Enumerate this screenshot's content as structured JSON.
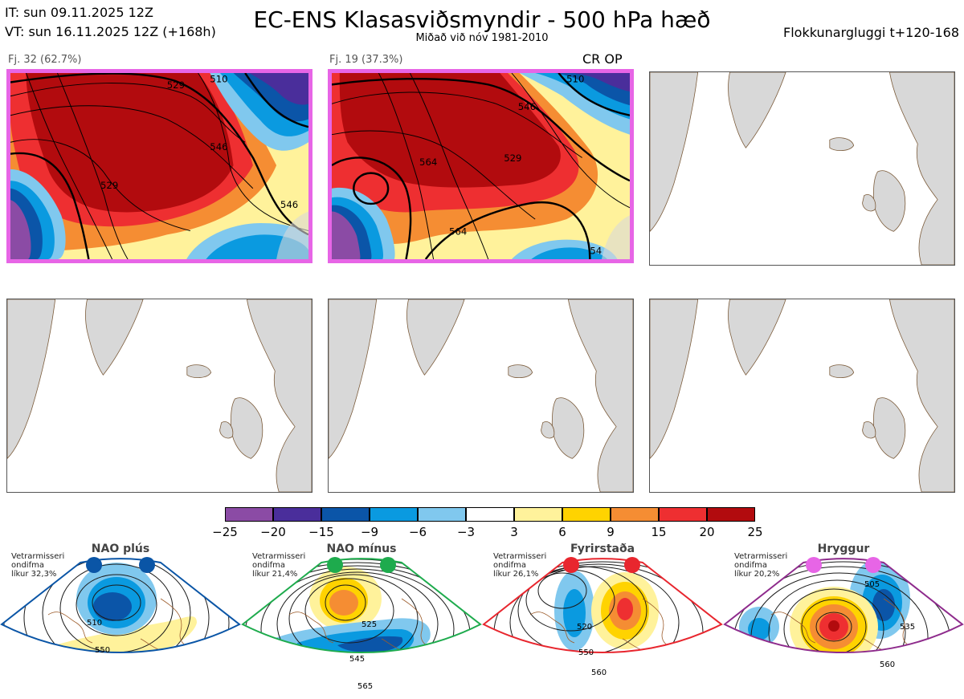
{
  "header": {
    "it": "IT: sun 09.11.2025 12Z",
    "vt": "VT: sun 16.11.2025 12Z  (+168h)",
    "title": "EC-ENS Klasasviðsmyndir - 500 hPa hæð",
    "subtitle": "Miðað við nóv 1981-2010",
    "window": "Flokkunargluggi t+120-168"
  },
  "panels": [
    {
      "label": "Fj. 32 (62.7%)",
      "contours": [
        "529",
        "546",
        "546",
        "529",
        "510"
      ]
    },
    {
      "label": "Fj. 19 (37.3%)",
      "tag": "CR OP",
      "contours": [
        "529",
        "546",
        "564",
        "564",
        "510",
        "54"
      ]
    }
  ],
  "colorbar": {
    "ticks": [
      "−25",
      "−20",
      "−15",
      "−9",
      "−6",
      "−3",
      "3",
      "6",
      "9",
      "15",
      "20",
      "25"
    ],
    "colors": [
      "#8b4ba5",
      "#4a2e9b",
      "#0b55a8",
      "#0a9ae0",
      "#80c8ee",
      "#ffffff",
      "#fff29b",
      "#ffd300",
      "#f58d33",
      "#ee2f31",
      "#b20b0e"
    ]
  },
  "regimes": [
    {
      "name": "NAO plús",
      "stat_line1": "Vetrarmisseri",
      "stat_line2": "ondifma",
      "stat_line3": "líkur 32,3%",
      "color": "#0a55a6",
      "contours": [
        "510",
        "550"
      ]
    },
    {
      "name": "NAO mínus",
      "stat_line1": "Vetrarmisseri",
      "stat_line2": "ondifma",
      "stat_line3": "líkur 21,4%",
      "color": "#1eab4d",
      "contours": [
        "525",
        "545",
        "565"
      ]
    },
    {
      "name": "Fyrirstaða",
      "stat_line1": "Vetrarmisseri",
      "stat_line2": "ondifma",
      "stat_line3": "líkur 26,1%",
      "color": "#e8262e",
      "contours": [
        "520",
        "550",
        "560"
      ]
    },
    {
      "name": "Hryggur",
      "stat_line1": "Vetrarmisseri",
      "stat_line2": "ondifma",
      "stat_line3": "líkur 20,2%",
      "color": "#e765e6",
      "edge_color": "#8e2b8c",
      "contours": [
        "505",
        "535",
        "560"
      ]
    }
  ]
}
